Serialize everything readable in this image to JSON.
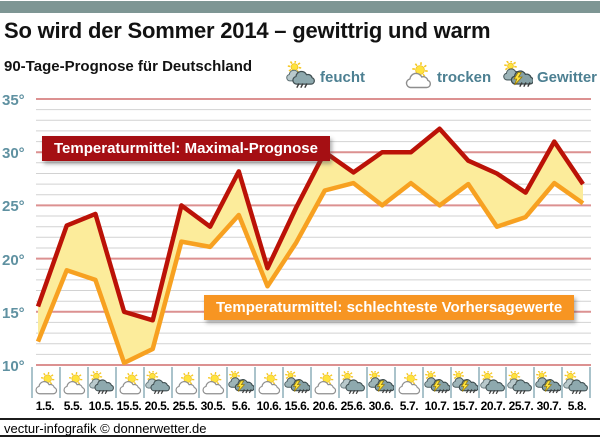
{
  "header": {
    "title": "So wird der Sommer 2014 – gewittrig und warm",
    "subtitle": "90-Tage-Prognose für Deutschland"
  },
  "legend": [
    {
      "type": "feucht",
      "label": "feucht"
    },
    {
      "type": "trocken",
      "label": "trocken"
    },
    {
      "type": "Gewitter",
      "label": "Gewitter"
    }
  ],
  "banners": {
    "max_label": "Temperaturmittel: Maximal-Prognose",
    "min_label": "Temperaturmittel: schlechteste Vorhersagewerte"
  },
  "footer": {
    "credit": "vectur-infografik © donnerwetter.de"
  },
  "colors": {
    "top_bar": "#7e9694",
    "axis_text": "#5f91a1",
    "legend_text": "#4d8092",
    "grid_major": "#dc9191",
    "grid_minor": "#d2d2d2",
    "banner_max_bg": "#a50f13",
    "banner_min_bg": "#f79522",
    "cell_border": "#aac3cb"
  },
  "chart_data": {
    "type": "area",
    "title": "So wird der Sommer 2014 – gewittrig und warm",
    "subtitle": "90-Tage-Prognose für Deutschland",
    "xlabel": "",
    "ylabel": "",
    "ylim": [
      10,
      35
    ],
    "grid": true,
    "legend_position": "top-right",
    "y_ticks": [
      "35°",
      "30°",
      "25°",
      "20°",
      "15°",
      "10°"
    ],
    "fill_color": "#fcec9b",
    "x_labels": [
      "1.5.",
      "5.5.",
      "10.5.",
      "15.5.",
      "20.5.",
      "25.5.",
      "30.5.",
      "5.6.",
      "10.6.",
      "15.6.",
      "20.6.",
      "25.6.",
      "30.6.",
      "5.7.",
      "10.7.",
      "15.7.",
      "20.7.",
      "25.7.",
      "30.7.",
      "5.8."
    ],
    "series": [
      {
        "name": "Temperaturmittel: Maximal-Prognose",
        "color": "#bb1207",
        "values": [
          15.5,
          23.1,
          24.2,
          15.0,
          14.2,
          25.0,
          23.0,
          28.2,
          19.1,
          24.8,
          30.0,
          28.1,
          30.0,
          30.0,
          32.2,
          29.2,
          28.0,
          26.2,
          31.0,
          27.0
        ]
      },
      {
        "name": "Temperaturmittel: schlechteste Vorhersagewerte",
        "color": "#f7a121",
        "values": [
          12.2,
          18.9,
          18.0,
          10.2,
          11.5,
          21.6,
          21.1,
          24.1,
          17.4,
          21.5,
          26.4,
          27.1,
          25.0,
          27.1,
          25.0,
          27.0,
          23.0,
          23.9,
          27.1,
          25.2
        ]
      }
    ],
    "day_icons": [
      "trocken",
      "trocken",
      "feucht",
      "trocken",
      "feucht",
      "trocken",
      "trocken",
      "Gewitter",
      "trocken",
      "Gewitter",
      "trocken",
      "feucht",
      "Gewitter",
      "trocken",
      "Gewitter",
      "Gewitter",
      "feucht",
      "feucht",
      "Gewitter",
      "feucht"
    ]
  }
}
